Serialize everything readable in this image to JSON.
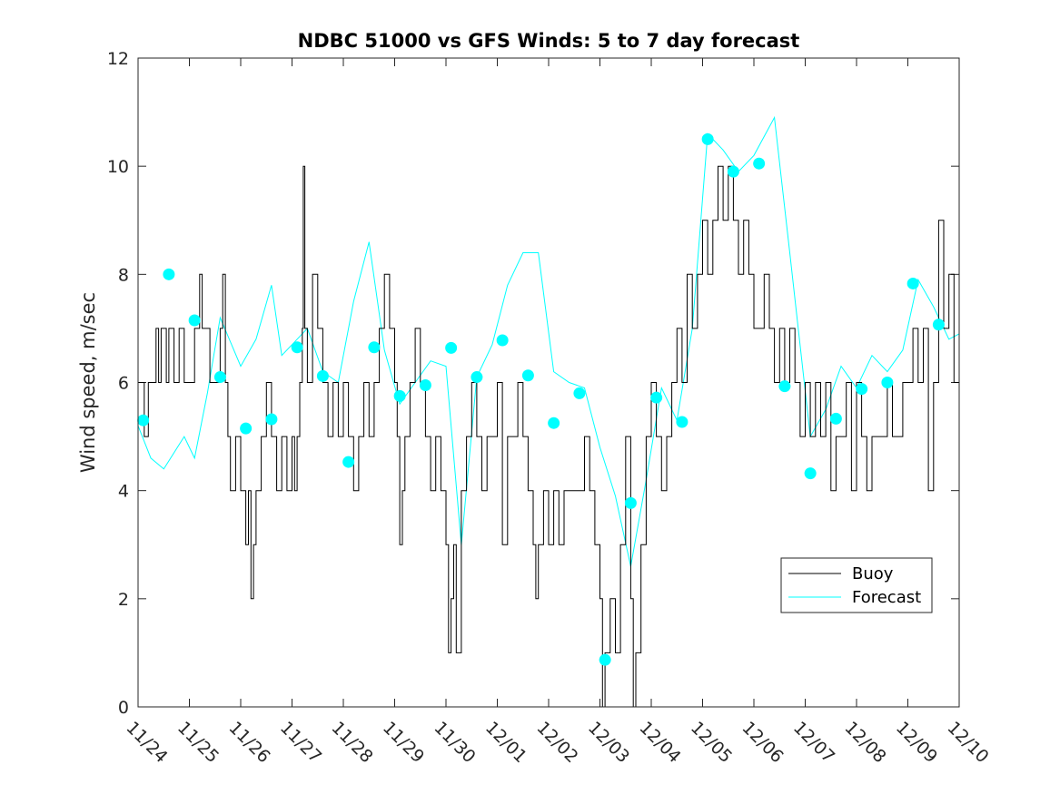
{
  "chart_data": {
    "type": "line",
    "title": "NDBC 51000 vs GFS Winds: 5 to 7 day forecast",
    "xlabel": "",
    "ylabel": "Wind speed, m/sec",
    "xlim": [
      0,
      16
    ],
    "ylim": [
      0,
      12
    ],
    "x_tick_labels": [
      "11/24",
      "11/25",
      "11/26",
      "11/27",
      "11/28",
      "11/29",
      "11/30",
      "12/01",
      "12/02",
      "12/03",
      "12/04",
      "12/05",
      "12/06",
      "12/07",
      "12/08",
      "12/09",
      "12/10"
    ],
    "y_ticks": [
      0,
      2,
      4,
      6,
      8,
      10,
      12
    ],
    "legend": {
      "placement": "bottom-right",
      "entries": [
        "Buoy",
        "Forecast"
      ]
    },
    "colors": {
      "buoy": "#000000",
      "forecast": "#00ffff",
      "axes": "#262626"
    },
    "series": [
      {
        "name": "Buoy",
        "points": [
          [
            0.0,
            6
          ],
          [
            0.12,
            5
          ],
          [
            0.2,
            6
          ],
          [
            0.3,
            6
          ],
          [
            0.35,
            7
          ],
          [
            0.4,
            6
          ],
          [
            0.45,
            7
          ],
          [
            0.55,
            6
          ],
          [
            0.6,
            7
          ],
          [
            0.7,
            6
          ],
          [
            0.8,
            7
          ],
          [
            0.9,
            6
          ],
          [
            1.0,
            6
          ],
          [
            1.1,
            7
          ],
          [
            1.2,
            8
          ],
          [
            1.25,
            7
          ],
          [
            1.4,
            6
          ],
          [
            1.5,
            6
          ],
          [
            1.6,
            7
          ],
          [
            1.65,
            8
          ],
          [
            1.7,
            6
          ],
          [
            1.75,
            5
          ],
          [
            1.8,
            4
          ],
          [
            1.9,
            5
          ],
          [
            2.0,
            4
          ],
          [
            2.1,
            3
          ],
          [
            2.15,
            4
          ],
          [
            2.2,
            2
          ],
          [
            2.25,
            3
          ],
          [
            2.3,
            4
          ],
          [
            2.4,
            5
          ],
          [
            2.5,
            6
          ],
          [
            2.6,
            5
          ],
          [
            2.7,
            4
          ],
          [
            2.8,
            5
          ],
          [
            2.9,
            4
          ],
          [
            3.0,
            5
          ],
          [
            3.05,
            4
          ],
          [
            3.1,
            5
          ],
          [
            3.15,
            6
          ],
          [
            3.2,
            7
          ],
          [
            3.22,
            10
          ],
          [
            3.25,
            7
          ],
          [
            3.3,
            6
          ],
          [
            3.4,
            8
          ],
          [
            3.5,
            7
          ],
          [
            3.6,
            6
          ],
          [
            3.7,
            5
          ],
          [
            3.8,
            6
          ],
          [
            3.9,
            5
          ],
          [
            4.0,
            6
          ],
          [
            4.1,
            5
          ],
          [
            4.2,
            4
          ],
          [
            4.3,
            5
          ],
          [
            4.4,
            6
          ],
          [
            4.5,
            5
          ],
          [
            4.6,
            6
          ],
          [
            4.7,
            7
          ],
          [
            4.8,
            8
          ],
          [
            4.9,
            7
          ],
          [
            5.0,
            6
          ],
          [
            5.05,
            5
          ],
          [
            5.1,
            3
          ],
          [
            5.15,
            4
          ],
          [
            5.2,
            5
          ],
          [
            5.3,
            6
          ],
          [
            5.4,
            7
          ],
          [
            5.5,
            6
          ],
          [
            5.6,
            5
          ],
          [
            5.7,
            4
          ],
          [
            5.8,
            5
          ],
          [
            5.9,
            4
          ],
          [
            6.0,
            3
          ],
          [
            6.05,
            1
          ],
          [
            6.1,
            2
          ],
          [
            6.15,
            3
          ],
          [
            6.2,
            1
          ],
          [
            6.3,
            4
          ],
          [
            6.4,
            5
          ],
          [
            6.5,
            6
          ],
          [
            6.6,
            5
          ],
          [
            6.7,
            4
          ],
          [
            6.8,
            5
          ],
          [
            6.9,
            5
          ],
          [
            7.0,
            6
          ],
          [
            7.1,
            3
          ],
          [
            7.2,
            5
          ],
          [
            7.3,
            5
          ],
          [
            7.4,
            6
          ],
          [
            7.5,
            5
          ],
          [
            7.6,
            4
          ],
          [
            7.7,
            3
          ],
          [
            7.75,
            2
          ],
          [
            7.8,
            3
          ],
          [
            7.9,
            4
          ],
          [
            8.0,
            3
          ],
          [
            8.1,
            4
          ],
          [
            8.2,
            3
          ],
          [
            8.3,
            4
          ],
          [
            8.5,
            4
          ],
          [
            8.6,
            4
          ],
          [
            8.7,
            5
          ],
          [
            8.8,
            4
          ],
          [
            8.9,
            3
          ],
          [
            9.0,
            2
          ],
          [
            9.05,
            0
          ],
          [
            9.1,
            1
          ],
          [
            9.2,
            2
          ],
          [
            9.3,
            1
          ],
          [
            9.4,
            3
          ],
          [
            9.5,
            5
          ],
          [
            9.6,
            2
          ],
          [
            9.65,
            0
          ],
          [
            9.7,
            1
          ],
          [
            9.8,
            3
          ],
          [
            9.9,
            5
          ],
          [
            10.0,
            6
          ],
          [
            10.1,
            5
          ],
          [
            10.2,
            4
          ],
          [
            10.3,
            5
          ],
          [
            10.4,
            6
          ],
          [
            10.5,
            7
          ],
          [
            10.6,
            6
          ],
          [
            10.7,
            8
          ],
          [
            10.8,
            7
          ],
          [
            10.9,
            8
          ],
          [
            11.0,
            9
          ],
          [
            11.1,
            8
          ],
          [
            11.2,
            9
          ],
          [
            11.3,
            10
          ],
          [
            11.4,
            9
          ],
          [
            11.5,
            10
          ],
          [
            11.6,
            9
          ],
          [
            11.7,
            8
          ],
          [
            11.8,
            9
          ],
          [
            11.9,
            8
          ],
          [
            12.0,
            7
          ],
          [
            12.1,
            7
          ],
          [
            12.2,
            8
          ],
          [
            12.3,
            7
          ],
          [
            12.4,
            6
          ],
          [
            12.5,
            7
          ],
          [
            12.6,
            6
          ],
          [
            12.7,
            7
          ],
          [
            12.8,
            6
          ],
          [
            12.9,
            5
          ],
          [
            13.0,
            6
          ],
          [
            13.1,
            5
          ],
          [
            13.2,
            6
          ],
          [
            13.3,
            5
          ],
          [
            13.4,
            6
          ],
          [
            13.5,
            4
          ],
          [
            13.6,
            5
          ],
          [
            13.7,
            5
          ],
          [
            13.8,
            6
          ],
          [
            13.9,
            4
          ],
          [
            14.0,
            6
          ],
          [
            14.1,
            5
          ],
          [
            14.2,
            4
          ],
          [
            14.3,
            5
          ],
          [
            14.4,
            5
          ],
          [
            14.5,
            5
          ],
          [
            14.6,
            6
          ],
          [
            14.7,
            5
          ],
          [
            14.8,
            5
          ],
          [
            14.9,
            6
          ],
          [
            15.0,
            6
          ],
          [
            15.1,
            7
          ],
          [
            15.2,
            6
          ],
          [
            15.3,
            7
          ],
          [
            15.4,
            4
          ],
          [
            15.5,
            6
          ],
          [
            15.6,
            9
          ],
          [
            15.7,
            7
          ],
          [
            15.8,
            8
          ],
          [
            15.9,
            6
          ],
          [
            16.0,
            6
          ]
        ]
      },
      {
        "name": "Forecast",
        "points": [
          [
            0.0,
            5.2
          ],
          [
            0.25,
            4.6
          ],
          [
            0.5,
            4.4
          ],
          [
            0.9,
            5.0
          ],
          [
            1.1,
            4.6
          ],
          [
            1.35,
            5.8
          ],
          [
            1.6,
            7.2
          ],
          [
            2.0,
            6.3
          ],
          [
            2.3,
            6.8
          ],
          [
            2.6,
            7.8
          ],
          [
            2.8,
            6.5
          ],
          [
            3.0,
            6.7
          ],
          [
            3.3,
            7.0
          ],
          [
            3.6,
            6.2
          ],
          [
            3.9,
            6.0
          ],
          [
            4.2,
            7.5
          ],
          [
            4.5,
            8.6
          ],
          [
            4.8,
            6.6
          ],
          [
            5.1,
            5.6
          ],
          [
            5.4,
            6.0
          ],
          [
            5.7,
            6.4
          ],
          [
            6.0,
            6.3
          ],
          [
            6.3,
            3.0
          ],
          [
            6.6,
            6.1
          ],
          [
            6.9,
            6.7
          ],
          [
            7.2,
            7.8
          ],
          [
            7.5,
            8.4
          ],
          [
            7.8,
            8.4
          ],
          [
            8.1,
            6.2
          ],
          [
            8.4,
            6.0
          ],
          [
            8.7,
            5.9
          ],
          [
            9.0,
            4.8
          ],
          [
            9.3,
            3.9
          ],
          [
            9.6,
            2.6
          ],
          [
            9.9,
            4.2
          ],
          [
            10.2,
            5.9
          ],
          [
            10.5,
            5.3
          ],
          [
            10.8,
            7.0
          ],
          [
            11.1,
            10.6
          ],
          [
            11.4,
            10.3
          ],
          [
            11.7,
            9.9
          ],
          [
            12.0,
            10.2
          ],
          [
            12.4,
            10.9
          ],
          [
            12.7,
            8.4
          ],
          [
            13.1,
            5.0
          ],
          [
            13.4,
            5.5
          ],
          [
            13.7,
            6.3
          ],
          [
            14.0,
            5.9
          ],
          [
            14.3,
            6.5
          ],
          [
            14.6,
            6.2
          ],
          [
            14.9,
            6.6
          ],
          [
            15.2,
            7.9
          ],
          [
            15.5,
            7.4
          ],
          [
            15.8,
            6.8
          ],
          [
            16.0,
            6.9
          ]
        ]
      }
    ],
    "forecast_markers": [
      [
        0.1,
        5.3
      ],
      [
        0.6,
        8.0
      ],
      [
        1.1,
        7.15
      ],
      [
        1.6,
        6.1
      ],
      [
        2.1,
        5.15
      ],
      [
        2.6,
        5.32
      ],
      [
        3.1,
        6.65
      ],
      [
        3.6,
        6.12
      ],
      [
        4.1,
        4.53
      ],
      [
        4.6,
        6.65
      ],
      [
        5.1,
        5.75
      ],
      [
        5.6,
        5.95
      ],
      [
        6.1,
        6.64
      ],
      [
        6.6,
        6.1
      ],
      [
        7.1,
        6.78
      ],
      [
        7.6,
        6.13
      ],
      [
        8.1,
        5.25
      ],
      [
        8.6,
        5.8
      ],
      [
        9.1,
        0.87
      ],
      [
        9.6,
        3.77
      ],
      [
        10.1,
        5.72
      ],
      [
        10.6,
        5.27
      ],
      [
        11.1,
        10.5
      ],
      [
        11.6,
        9.9
      ],
      [
        12.1,
        10.05
      ],
      [
        12.6,
        5.93
      ],
      [
        13.1,
        4.32
      ],
      [
        13.6,
        5.33
      ],
      [
        14.1,
        5.88
      ],
      [
        14.6,
        6.0
      ],
      [
        15.1,
        7.83
      ],
      [
        15.6,
        7.07
      ]
    ]
  }
}
